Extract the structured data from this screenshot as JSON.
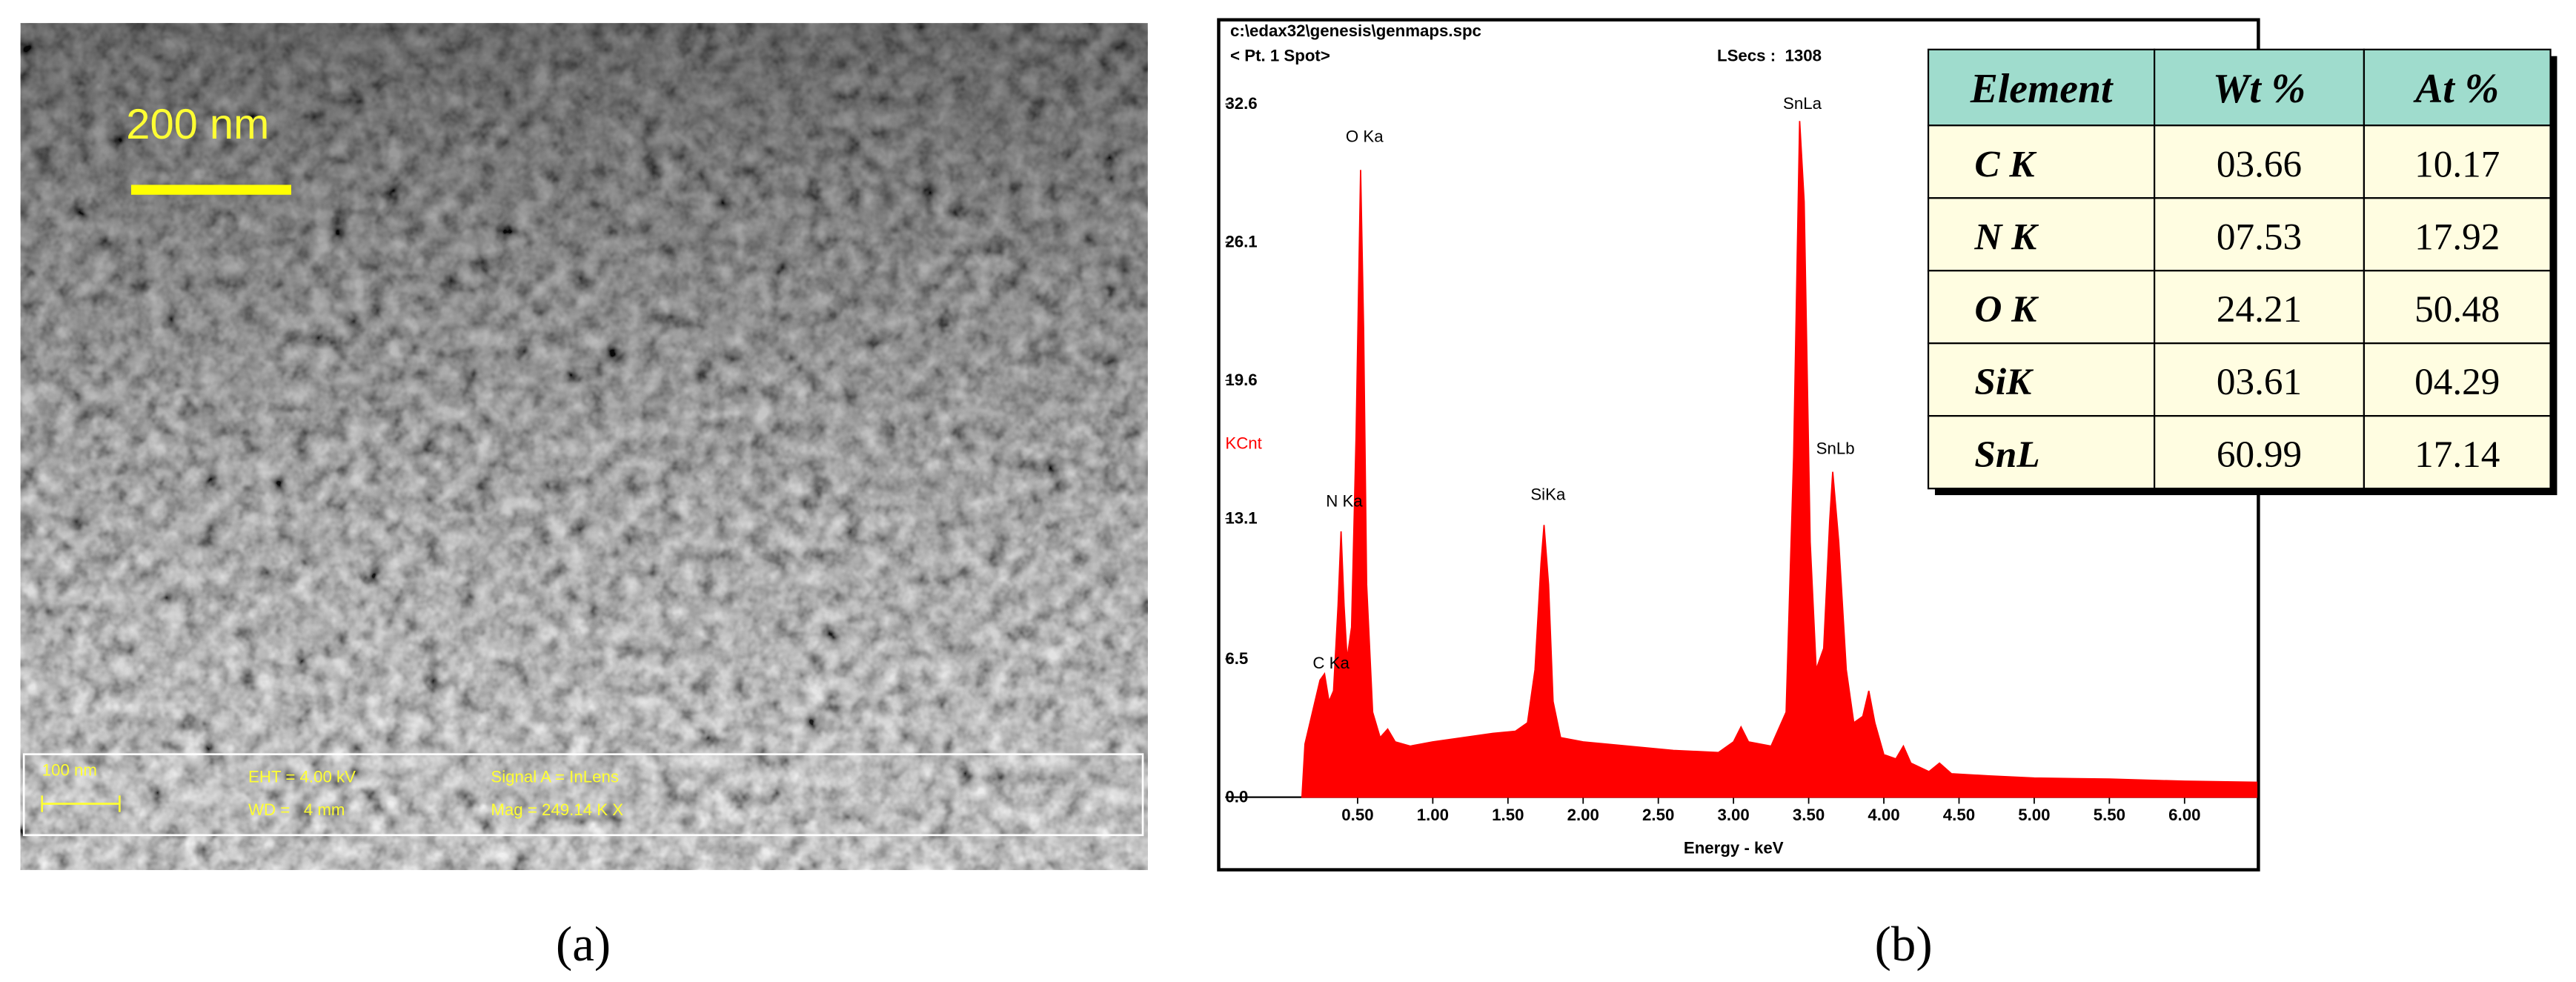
{
  "sem_image": {
    "scale_bar": "200 nm",
    "info_bar": {
      "scale": "100 nm",
      "eht": "EHT = 4.00 kV",
      "wd": "WD =   4 mm",
      "signal": "Signal A = InLens",
      "mag": "Mag = 249.14 K X"
    }
  },
  "chart_data": {
    "type": "area",
    "file": "c:\\edax32\\genesis\\genmaps.spc",
    "spot": "< Pt. 1 Spot>",
    "lsecs": "LSecs :  1308",
    "y_label": "KCnt",
    "x_label": "Energy - keV",
    "color": "#ff0000",
    "x": [
      0.13,
      0.15,
      0.2,
      0.25,
      0.28,
      0.31,
      0.34,
      0.37,
      0.39,
      0.41,
      0.43,
      0.46,
      0.49,
      0.52,
      0.54,
      0.56,
      0.6,
      0.65,
      0.7,
      0.75,
      0.85,
      1.0,
      1.2,
      1.4,
      1.55,
      1.63,
      1.68,
      1.72,
      1.74,
      1.77,
      1.8,
      1.85,
      2.0,
      2.3,
      2.6,
      2.9,
      3.0,
      3.05,
      3.1,
      3.25,
      3.35,
      3.4,
      3.44,
      3.47,
      3.51,
      3.55,
      3.6,
      3.64,
      3.66,
      3.7,
      3.75,
      3.8,
      3.86,
      3.9,
      3.94,
      4.0,
      4.08,
      4.13,
      4.18,
      4.3,
      4.37,
      4.45,
      4.7,
      5.0,
      5.5,
      6.0,
      6.48
    ],
    "values": [
      0,
      2.5,
      4.0,
      5.5,
      5.8,
      4.5,
      5.0,
      9,
      12.5,
      9,
      6.5,
      8,
      17,
      29.5,
      22,
      10,
      4,
      2.8,
      3.2,
      2.6,
      2.4,
      2.6,
      2.8,
      3.0,
      3.1,
      3.5,
      6,
      11,
      12.8,
      10,
      4.5,
      2.8,
      2.6,
      2.4,
      2.2,
      2.1,
      2.6,
      3.3,
      2.6,
      2.4,
      4,
      16,
      31.8,
      28,
      12,
      6,
      7,
      13,
      15.3,
      12,
      6,
      3.5,
      3.8,
      5.0,
      3.5,
      2.0,
      1.8,
      2.4,
      1.6,
      1.2,
      1.6,
      1.1,
      1.0,
      0.9,
      0.85,
      0.75,
      0.7
    ],
    "annotations": [
      "O Ka",
      "N Ka",
      "C Ka",
      "SiKa",
      "SnLa",
      "SnLb"
    ],
    "xlim": [
      -0.38,
      6.48
    ],
    "ylim": [
      0,
      32.6
    ],
    "xticks": [
      {
        "value": 0.5,
        "label": "0.50"
      },
      {
        "value": 1.0,
        "label": "1.00"
      },
      {
        "value": 1.5,
        "label": "1.50"
      },
      {
        "value": 2.0,
        "label": "2.00"
      },
      {
        "value": 2.5,
        "label": "2.50"
      },
      {
        "value": 3.0,
        "label": "3.00"
      },
      {
        "value": 3.5,
        "label": "3.50"
      },
      {
        "value": 4.0,
        "label": "4.00"
      },
      {
        "value": 4.5,
        "label": "4.50"
      },
      {
        "value": 5.0,
        "label": "5.00"
      },
      {
        "value": 5.5,
        "label": "5.50"
      },
      {
        "value": 6.0,
        "label": "6.00"
      }
    ],
    "yticks": [
      {
        "value": 0,
        "label": "0.0"
      },
      6.5,
      13.1,
      19.6,
      26.1,
      32.6
    ]
  },
  "table": {
    "columns": [
      "Element",
      "Wt %",
      "At %"
    ],
    "rows": [
      [
        "C K",
        "03.66",
        "10.17"
      ],
      [
        "N K",
        "07.53",
        "17.92"
      ],
      [
        "O K",
        "24.21",
        "50.48"
      ],
      [
        "SiK",
        "03.61",
        "04.29"
      ],
      [
        "SnL",
        "60.99",
        "17.14"
      ]
    ]
  },
  "captions": [
    "(a)",
    "(b)"
  ]
}
